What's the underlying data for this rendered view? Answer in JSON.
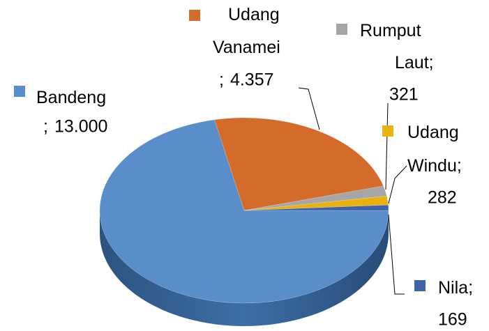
{
  "chart_data": {
    "type": "pie3d",
    "categories": [
      "Bandeng",
      "Udang Vanamei",
      "Rumput Laut",
      "Udang Windu",
      "Nila"
    ],
    "values": [
      13000,
      4357,
      321,
      282,
      169
    ],
    "value_labels": [
      "13.000",
      "4.357",
      "321",
      "282",
      "169"
    ],
    "label_separator": ";",
    "colors": [
      "#5a8ecb",
      "#d46b2a",
      "#a6a6a6",
      "#e8b10e",
      "#3f62ad"
    ]
  }
}
